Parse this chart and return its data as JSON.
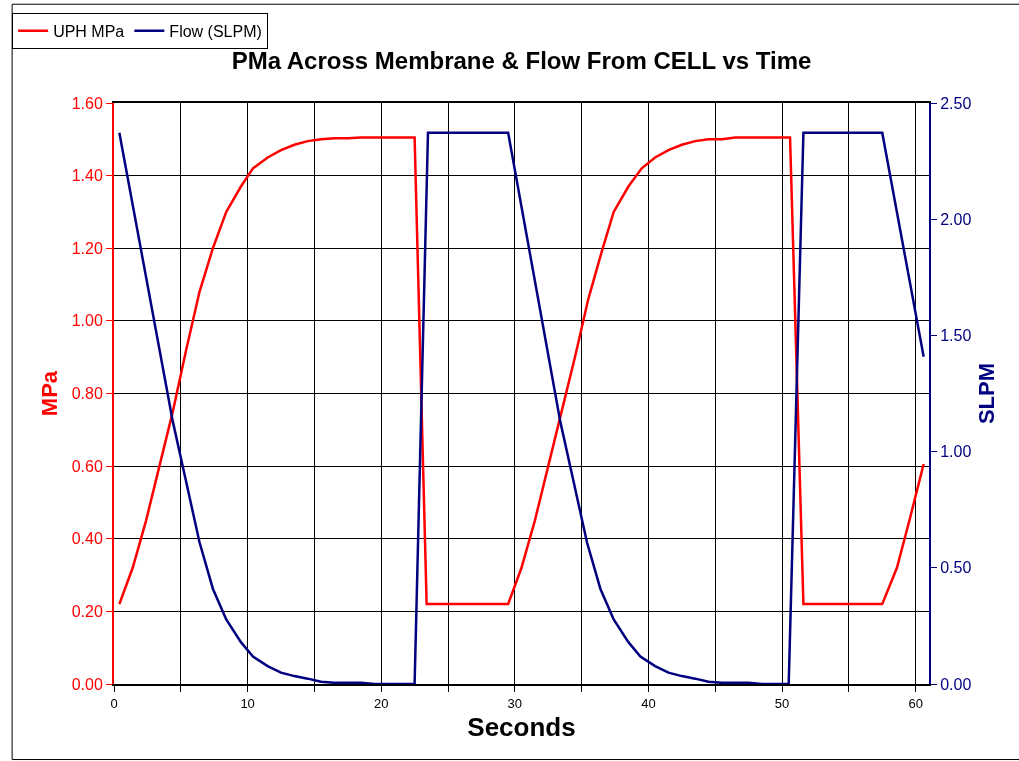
{
  "chart_data": {
    "type": "line",
    "title": "PMa Across Membrane & Flow From CELL vs Time",
    "xlabel": "Seconds",
    "ylabel": "MPa",
    "y2label": "SLPM",
    "xlim": [
      0,
      61
    ],
    "xticks": [
      0,
      {
        "value": 5,
        "label": null
      },
      10,
      {
        "value": 15,
        "label": null
      },
      20,
      {
        "value": 25,
        "label": null
      },
      30,
      {
        "value": 35,
        "label": null
      },
      40,
      {
        "value": 45,
        "label": null
      },
      50,
      {
        "value": 55,
        "label": null
      },
      60
    ],
    "ylim": [
      0,
      1.6
    ],
    "yticks": [
      {
        "value": 0,
        "label": "0.00"
      },
      {
        "value": 0.2,
        "label": "0.20"
      },
      {
        "value": 0.4,
        "label": "0.40"
      },
      {
        "value": 0.6,
        "label": "0.60"
      },
      {
        "value": 0.8,
        "label": "0.80"
      },
      {
        "value": 1.0,
        "label": "1.00"
      },
      {
        "value": 1.2,
        "label": "1.20"
      },
      {
        "value": 1.4,
        "label": "1.40"
      },
      {
        "value": 1.6,
        "label": "1.60"
      }
    ],
    "y2lim": [
      0,
      2.5
    ],
    "y2ticks": [
      {
        "value": 0,
        "label": "0.00"
      },
      {
        "value": 0.5,
        "label": "0.50"
      },
      {
        "value": 1.0,
        "label": "1.00"
      },
      {
        "value": 1.5,
        "label": "1.50"
      },
      {
        "value": 2.0,
        "label": "2.00"
      },
      {
        "value": 2.5,
        "label": "2.50"
      }
    ],
    "grid": true,
    "legend": "top left",
    "marker": "none",
    "line_style": "solid",
    "series": [
      {
        "name": "UPH MPa",
        "color": "#ff0000",
        "x": [
          0.4,
          1.4,
          2.4,
          3.4,
          4.4,
          5.4,
          6.4,
          7.4,
          8.4,
          9.5,
          10.4,
          11.5,
          12.5,
          13.5,
          14.5,
          15.5,
          16.5,
          17.5,
          18.5,
          22.5,
          23.4,
          29.5,
          30.5,
          31.5,
          32.5,
          33.5,
          34.5,
          35.5,
          36.5,
          37.4,
          38.5,
          39.5,
          40.5,
          41.5,
          42.5,
          43.5,
          44.5,
          45.5,
          46.5,
          50.6,
          51.6,
          57.5,
          58.6,
          59.6,
          60.6
        ],
        "values": [
          0.22,
          0.32,
          0.45,
          0.6,
          0.75,
          0.92,
          1.08,
          1.2,
          1.3,
          1.37,
          1.42,
          1.45,
          1.47,
          1.485,
          1.495,
          1.5,
          1.503,
          1.503,
          1.505,
          1.505,
          0.22,
          0.22,
          0.32,
          0.45,
          0.6,
          0.75,
          0.9,
          1.06,
          1.19,
          1.3,
          1.37,
          1.42,
          1.45,
          1.47,
          1.485,
          1.495,
          1.5,
          1.5,
          1.505,
          1.505,
          0.22,
          0.22,
          0.32,
          0.46,
          0.606
        ]
      },
      {
        "name": "Flow (SLPM)",
        "color": "#000080",
        "axis": "y2",
        "x": [
          0.4,
          4.4,
          5.4,
          6.4,
          7.4,
          8.4,
          9.5,
          10.4,
          11.5,
          12.5,
          13.5,
          14.5,
          15.5,
          16.5,
          18.5,
          19.5,
          22.5,
          23.5,
          29.5,
          33.4,
          34.4,
          35.4,
          36.4,
          37.4,
          38.5,
          39.4,
          40.5,
          41.5,
          42.5,
          43.5,
          44.5,
          45.5,
          47.5,
          48.5,
          50.5,
          51.6,
          57.5,
          60.6
        ],
        "values": [
          2.372,
          1.13,
          0.87,
          0.61,
          0.41,
          0.278,
          0.18,
          0.118,
          0.077,
          0.049,
          0.034,
          0.023,
          0.01,
          0.005,
          0.005,
          0,
          0,
          2.372,
          2.372,
          1.13,
          0.87,
          0.61,
          0.41,
          0.278,
          0.18,
          0.118,
          0.077,
          0.049,
          0.034,
          0.023,
          0.01,
          0.005,
          0.005,
          0,
          0,
          2.372,
          2.372,
          1.408
        ]
      }
    ]
  }
}
